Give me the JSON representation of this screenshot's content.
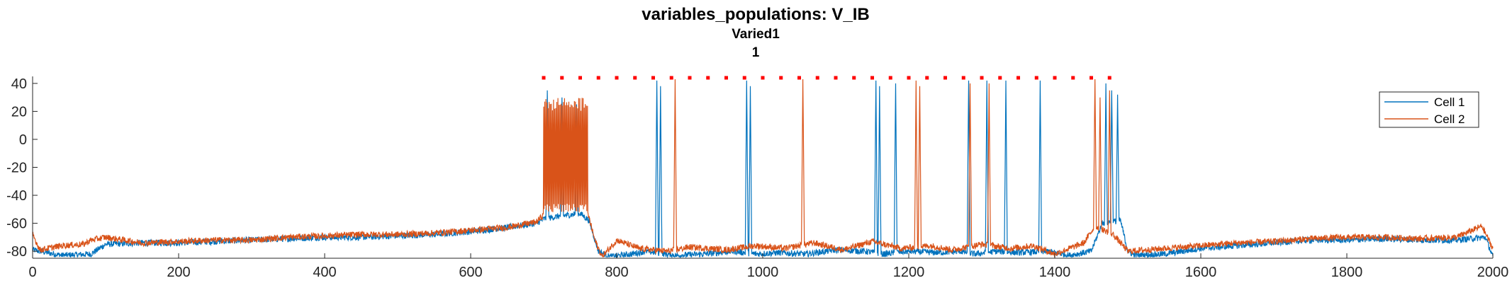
{
  "chart_data": {
    "type": "line",
    "title": "variables_populations: V_IB",
    "subtitle": "Varied1",
    "subtitle2": "1",
    "xlabel": "",
    "ylabel": "",
    "xlim": [
      0,
      2000
    ],
    "ylim": [
      -85,
      45
    ],
    "xticks": [
      0,
      200,
      400,
      600,
      800,
      1000,
      1200,
      1400,
      1600,
      1800,
      2000
    ],
    "yticks": [
      -80,
      -60,
      -40,
      -20,
      0,
      20,
      40
    ],
    "grid": false,
    "legend_position": "top-right",
    "series": [
      {
        "name": "Cell 1",
        "color": "#0072BD",
        "baseline": [
          [
            0,
            -79
          ],
          [
            40,
            -83
          ],
          [
            80,
            -82
          ],
          [
            100,
            -75
          ],
          [
            150,
            -74
          ],
          [
            200,
            -74
          ],
          [
            250,
            -73
          ],
          [
            300,
            -72
          ],
          [
            350,
            -71
          ],
          [
            400,
            -70
          ],
          [
            450,
            -70
          ],
          [
            500,
            -69
          ],
          [
            550,
            -68
          ],
          [
            600,
            -66
          ],
          [
            650,
            -63
          ],
          [
            690,
            -60
          ],
          [
            700,
            -57
          ],
          [
            720,
            -55
          ],
          [
            750,
            -53
          ],
          [
            762,
            -58
          ],
          [
            775,
            -80
          ],
          [
            790,
            -84
          ],
          [
            820,
            -82
          ],
          [
            840,
            -80
          ],
          [
            880,
            -83
          ],
          [
            920,
            -82
          ],
          [
            960,
            -80
          ],
          [
            990,
            -82
          ],
          [
            1020,
            -81
          ],
          [
            1060,
            -82
          ],
          [
            1100,
            -79
          ],
          [
            1140,
            -80
          ],
          [
            1165,
            -82
          ],
          [
            1200,
            -80
          ],
          [
            1240,
            -81
          ],
          [
            1270,
            -80
          ],
          [
            1290,
            -82
          ],
          [
            1320,
            -80
          ],
          [
            1350,
            -81
          ],
          [
            1390,
            -80
          ],
          [
            1420,
            -83
          ],
          [
            1450,
            -80
          ],
          [
            1465,
            -60
          ],
          [
            1490,
            -58
          ],
          [
            1500,
            -80
          ],
          [
            1510,
            -83
          ],
          [
            1550,
            -82
          ],
          [
            1600,
            -78
          ],
          [
            1650,
            -76
          ],
          [
            1700,
            -74
          ],
          [
            1750,
            -72
          ],
          [
            1800,
            -72
          ],
          [
            1850,
            -71
          ],
          [
            1900,
            -72
          ],
          [
            1950,
            -72
          ],
          [
            1990,
            -70
          ],
          [
            2000,
            -84
          ]
        ],
        "spikes": [
          {
            "t": 705,
            "peak": 35,
            "width": 2
          },
          {
            "t": 725,
            "peak": 30,
            "width": 2
          },
          {
            "t": 745,
            "peak": 25,
            "width": 2
          },
          {
            "t": 855,
            "peak": 42,
            "width": 2
          },
          {
            "t": 860,
            "peak": 38,
            "width": 2
          },
          {
            "t": 978,
            "peak": 42,
            "width": 2
          },
          {
            "t": 983,
            "peak": 38,
            "width": 2
          },
          {
            "t": 1155,
            "peak": 42,
            "width": 2
          },
          {
            "t": 1160,
            "peak": 38,
            "width": 2
          },
          {
            "t": 1182,
            "peak": 40,
            "width": 2
          },
          {
            "t": 1282,
            "peak": 42,
            "width": 2
          },
          {
            "t": 1307,
            "peak": 42,
            "width": 2
          },
          {
            "t": 1333,
            "peak": 42,
            "width": 2
          },
          {
            "t": 1380,
            "peak": 42,
            "width": 2
          },
          {
            "t": 1470,
            "peak": 40,
            "width": 2
          },
          {
            "t": 1478,
            "peak": 35,
            "width": 2
          },
          {
            "t": 1486,
            "peak": 32,
            "width": 2
          }
        ]
      },
      {
        "name": "Cell 2",
        "color": "#D95319",
        "baseline": [
          [
            0,
            -68
          ],
          [
            10,
            -79
          ],
          [
            40,
            -76
          ],
          [
            70,
            -75
          ],
          [
            80,
            -72
          ],
          [
            100,
            -70
          ],
          [
            150,
            -74
          ],
          [
            200,
            -73
          ],
          [
            250,
            -72
          ],
          [
            300,
            -72
          ],
          [
            350,
            -70
          ],
          [
            400,
            -69
          ],
          [
            450,
            -68
          ],
          [
            500,
            -68
          ],
          [
            550,
            -67
          ],
          [
            600,
            -65
          ],
          [
            650,
            -63
          ],
          [
            690,
            -59
          ],
          [
            700,
            -54
          ],
          [
            730,
            -52
          ],
          [
            760,
            -52
          ],
          [
            770,
            -72
          ],
          [
            780,
            -84
          ],
          [
            800,
            -72
          ],
          [
            830,
            -78
          ],
          [
            870,
            -80
          ],
          [
            900,
            -77
          ],
          [
            950,
            -79
          ],
          [
            990,
            -76
          ],
          [
            1030,
            -78
          ],
          [
            1070,
            -74
          ],
          [
            1110,
            -79
          ],
          [
            1150,
            -73
          ],
          [
            1190,
            -78
          ],
          [
            1230,
            -76
          ],
          [
            1260,
            -79
          ],
          [
            1300,
            -75
          ],
          [
            1340,
            -78
          ],
          [
            1370,
            -76
          ],
          [
            1400,
            -82
          ],
          [
            1440,
            -74
          ],
          [
            1455,
            -62
          ],
          [
            1480,
            -68
          ],
          [
            1500,
            -80
          ],
          [
            1550,
            -78
          ],
          [
            1600,
            -76
          ],
          [
            1650,
            -74
          ],
          [
            1700,
            -73
          ],
          [
            1750,
            -71
          ],
          [
            1800,
            -70
          ],
          [
            1850,
            -70
          ],
          [
            1900,
            -71
          ],
          [
            1950,
            -70
          ],
          [
            1985,
            -62
          ],
          [
            2000,
            -78
          ]
        ],
        "burst": {
          "start": 700,
          "end": 760,
          "high": 30,
          "low": -52
        },
        "spikes": [
          {
            "t": 880,
            "peak": 43,
            "width": 2
          },
          {
            "t": 1055,
            "peak": 43,
            "width": 2
          },
          {
            "t": 1210,
            "peak": 42,
            "width": 2
          },
          {
            "t": 1215,
            "peak": 38,
            "width": 2
          },
          {
            "t": 1284,
            "peak": 40,
            "width": 2
          },
          {
            "t": 1310,
            "peak": 40,
            "width": 2
          },
          {
            "t": 1455,
            "peak": 43,
            "width": 2
          },
          {
            "t": 1462,
            "peak": 30,
            "width": 2
          },
          {
            "t": 1475,
            "peak": 35,
            "width": 2
          }
        ]
      }
    ],
    "raster": {
      "color": "#FF0000",
      "y": 44,
      "x": [
        700,
        725,
        750,
        775,
        800,
        825,
        850,
        875,
        900,
        925,
        950,
        975,
        1000,
        1025,
        1050,
        1075,
        1100,
        1125,
        1150,
        1175,
        1200,
        1225,
        1250,
        1275,
        1300,
        1325,
        1350,
        1375,
        1400,
        1425,
        1450,
        1475
      ]
    }
  }
}
